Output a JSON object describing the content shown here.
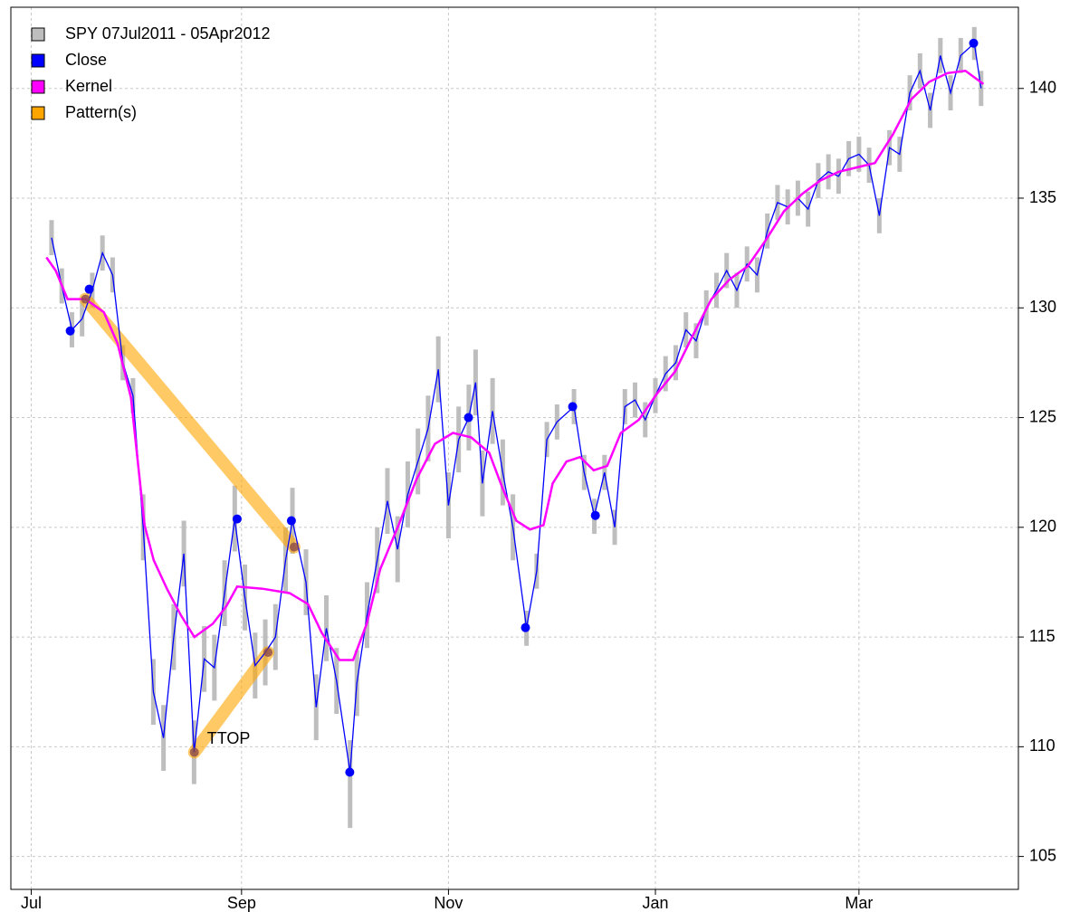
{
  "chart_data": {
    "type": "line",
    "grid": true,
    "legend_position": "top-left",
    "y_axis_side": "right",
    "xlim": [
      -6,
      291
    ],
    "xticks": [
      {
        "value": 0,
        "label": "Jul"
      },
      {
        "value": 62,
        "label": "Sep"
      },
      {
        "value": 123,
        "label": "Nov"
      },
      {
        "value": 184,
        "label": "Jan"
      },
      {
        "value": 244,
        "label": "Mar"
      }
    ],
    "ylim": [
      103.5,
      143.7
    ],
    "yticks": [
      105,
      110,
      115,
      120,
      125,
      130,
      135,
      140
    ],
    "x": [
      6,
      9,
      12,
      15,
      18,
      21,
      24,
      27,
      30,
      33,
      36,
      39,
      42,
      45,
      48,
      51,
      54,
      57,
      60,
      63,
      66,
      69,
      72,
      75,
      77,
      81,
      84,
      87,
      90,
      94,
      96,
      99,
      102,
      105,
      108,
      111,
      114,
      117,
      120,
      123,
      126,
      129,
      131,
      133,
      136,
      139,
      142,
      146,
      149,
      152,
      155,
      160,
      163,
      166,
      169,
      172,
      175,
      178,
      181,
      184,
      187,
      190,
      193,
      196,
      199,
      202,
      205,
      208,
      211,
      214,
      217,
      220,
      223,
      226,
      229,
      232,
      235,
      238,
      241,
      244,
      247,
      250,
      253,
      256,
      259,
      262,
      265,
      268,
      271,
      274,
      278,
      280
    ],
    "series": [
      {
        "name": "SPY 07Jul2011 - 05Apr2012",
        "color": "#bebebe",
        "high": [
          134.0,
          131.8,
          129.8,
          130.3,
          131.6,
          133.3,
          132.3,
          128.3,
          126.8,
          121.5,
          114.0,
          111.9,
          116.5,
          120.3,
          111.2,
          115.5,
          115.1,
          118.5,
          121.9,
          118.3,
          115.2,
          115.8,
          116.5,
          120.0,
          121.8,
          119.0,
          113.3,
          116.9,
          114.5,
          110.3,
          114.4,
          117.5,
          120.0,
          122.7,
          120.5,
          123.0,
          124.5,
          126.0,
          128.7,
          122.5,
          125.5,
          126.5,
          128.1,
          123.5,
          126.8,
          124.0,
          121.5,
          116.2,
          118.8,
          124.8,
          125.6,
          126.3,
          123.3,
          121.3,
          123.3,
          120.8,
          126.3,
          126.6,
          125.7,
          126.8,
          127.8,
          128.3,
          129.8,
          129.3,
          130.8,
          131.6,
          132.5,
          131.6,
          132.8,
          132.3,
          134.3,
          135.6,
          135.4,
          135.8,
          135.3,
          136.6,
          137.0,
          136.8,
          137.6,
          137.8,
          137.3,
          135.0,
          138.1,
          137.8,
          140.6,
          141.6,
          139.8,
          142.3,
          140.6,
          142.3,
          142.8,
          140.8
        ],
        "low": [
          132.4,
          130.2,
          128.2,
          128.7,
          130.0,
          131.7,
          130.7,
          126.7,
          125.2,
          118.5,
          111.0,
          108.9,
          113.5,
          117.3,
          108.3,
          112.5,
          112.1,
          115.5,
          118.9,
          115.3,
          112.2,
          112.8,
          113.5,
          117.0,
          118.8,
          116.0,
          110.3,
          113.9,
          111.5,
          106.3,
          111.4,
          114.5,
          117.0,
          119.7,
          117.5,
          120.0,
          121.5,
          123.0,
          125.7,
          119.5,
          122.5,
          123.5,
          125.1,
          120.5,
          123.8,
          121.0,
          118.5,
          114.6,
          117.2,
          123.2,
          124.0,
          124.7,
          121.7,
          119.7,
          121.7,
          119.2,
          124.7,
          125.0,
          124.1,
          125.2,
          126.2,
          126.7,
          128.2,
          127.7,
          129.2,
          130.0,
          130.9,
          130.0,
          131.2,
          130.7,
          132.7,
          134.0,
          133.8,
          134.2,
          133.7,
          135.0,
          135.4,
          135.2,
          136.0,
          136.2,
          135.7,
          133.4,
          136.5,
          136.2,
          139.0,
          140.0,
          138.2,
          140.7,
          139.0,
          140.7,
          141.3,
          139.2
        ]
      },
      {
        "name": "Close",
        "color": "#0000ff",
        "values": [
          133.2,
          131.0,
          129.0,
          129.5,
          130.8,
          132.5,
          131.5,
          127.5,
          126.0,
          120.0,
          112.5,
          110.4,
          115.0,
          118.8,
          109.75,
          114.0,
          113.6,
          117.0,
          120.38,
          116.8,
          113.7,
          114.3,
          115.0,
          118.5,
          120.3,
          117.5,
          111.8,
          115.4,
          113.0,
          108.84,
          112.9,
          116.0,
          118.5,
          121.2,
          119.0,
          121.5,
          123.0,
          124.5,
          127.2,
          121.0,
          124.0,
          125.0,
          126.6,
          122.0,
          125.3,
          122.5,
          120.0,
          115.43,
          118.0,
          124.0,
          124.8,
          125.5,
          122.5,
          120.54,
          122.5,
          120.0,
          125.5,
          125.8,
          124.9,
          126.0,
          127.0,
          127.5,
          129.0,
          128.5,
          130.0,
          130.8,
          131.7,
          130.8,
          132.0,
          131.5,
          133.5,
          134.8,
          134.6,
          135.0,
          134.5,
          135.8,
          136.2,
          136.0,
          136.8,
          137.0,
          136.5,
          134.2,
          137.3,
          137.0,
          139.8,
          140.8,
          139.0,
          141.5,
          139.8,
          141.5,
          142.06,
          140.0
        ]
      },
      {
        "name": "Kernel",
        "color": "#ff00ff",
        "x": [
          4.5,
          7.2,
          10.7,
          16,
          21.4,
          25.4,
          29.4,
          33.4,
          36.1,
          40,
          44.1,
          48.1,
          53.5,
          57.5,
          60.7,
          68.2,
          76.2,
          81.6,
          85.6,
          90.9,
          94.9,
          98.9,
          102.9,
          108.3,
          113.6,
          119,
          124.3,
          129.7,
          135,
          138.9,
          143,
          147,
          151,
          153.7,
          157.8,
          161.8,
          165.8,
          169.8,
          173.8,
          179.1,
          184.5,
          189.8,
          195.2,
          200.5,
          205.9,
          211.2,
          216.6,
          221.9,
          227.3,
          232.6,
          238,
          243.3,
          248.7,
          254,
          259.4,
          264.7,
          270.1,
          275.4,
          280.7
        ],
        "values": [
          132.3,
          131.7,
          130.4,
          130.4,
          129.8,
          128.4,
          125.9,
          120.1,
          118.5,
          117.2,
          116.0,
          115.0,
          115.6,
          116.4,
          117.3,
          117.2,
          117.0,
          116.5,
          115.2,
          113.95,
          113.95,
          115.6,
          118.1,
          120.1,
          122.2,
          123.8,
          124.3,
          124.1,
          123.4,
          121.8,
          120.3,
          119.9,
          120.1,
          122.0,
          123.0,
          123.2,
          122.6,
          122.8,
          124.3,
          124.9,
          126.1,
          127.1,
          128.8,
          130.4,
          131.3,
          131.9,
          133.1,
          134.4,
          135.2,
          135.8,
          136.2,
          136.4,
          136.6,
          137.9,
          139.5,
          140.3,
          140.7,
          140.8,
          140.2
        ]
      },
      {
        "name": "Pattern(s)",
        "color": "#ffa500",
        "segments": [
          {
            "x": [
              16,
              77.5
            ],
            "y": [
              130.4,
              119.1
            ]
          },
          {
            "x": [
              48.1,
              69.8
            ],
            "y": [
              109.75,
              114.3
            ]
          }
        ]
      }
    ],
    "extrema": {
      "color": "#0000ff",
      "x": [
        11.5,
        17.1,
        60.7,
        76.7,
        93.9,
        128.9,
        145.7,
        159.6,
        166.3,
        277.8
      ],
      "y": [
        128.95,
        130.85,
        120.38,
        120.3,
        108.84,
        125.0,
        115.43,
        125.5,
        120.54,
        142.06
      ]
    },
    "pattern_point_color": "#8b4a4a",
    "annotations": [
      {
        "text": "TTOP",
        "x": 48.1,
        "y": 109.75
      }
    ]
  }
}
